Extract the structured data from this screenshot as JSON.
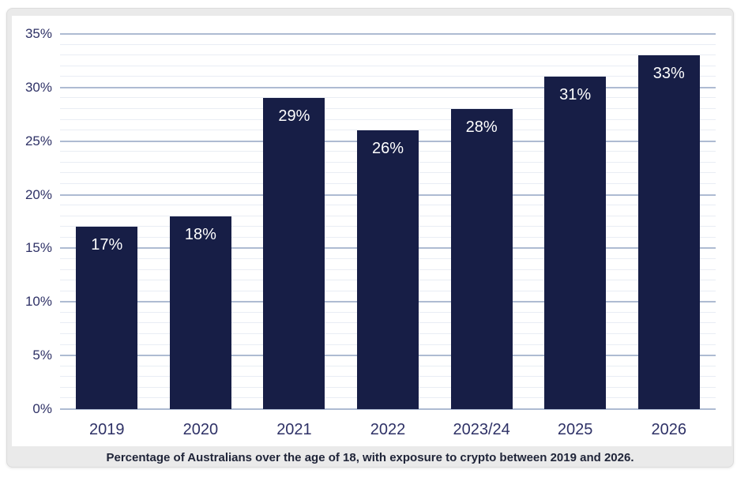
{
  "caption": {
    "text": "Percentage of Australians over the age of 18, with exposure to crypto between 2019 and 2026."
  },
  "colors": {
    "page_background": "#ffffff",
    "panel_background": "#eaeaea",
    "card_background": "#ffffff",
    "bar_fill": "#171e46",
    "bar_label_text": "#ffffff",
    "axis_label_text": "#2e3166",
    "gridline_major": "#aebbd2",
    "gridline_minor": "#e9edf4",
    "caption_text": "#1f2438"
  },
  "chart_data": {
    "type": "bar",
    "title": "",
    "xlabel": "",
    "ylabel": "",
    "categories": [
      "2019",
      "2020",
      "2021",
      "2022",
      "2023/24",
      "2025",
      "2026"
    ],
    "values": [
      17,
      18,
      29,
      26,
      28,
      31,
      33
    ],
    "value_labels": [
      "17%",
      "18%",
      "29%",
      "26%",
      "28%",
      "31%",
      "33%"
    ],
    "ylim": [
      0,
      35
    ],
    "y_ticks": [
      "0%",
      "5%",
      "10%",
      "15%",
      "20%",
      "25%",
      "30%",
      "35%"
    ],
    "y_tick_step": 5,
    "minor_grid_step": 1,
    "grid": "horizontal-major-and-minor",
    "legend": "none",
    "caption": "Percentage of Australians over the age of 18, with exposure to crypto between 2019 and 2026."
  }
}
